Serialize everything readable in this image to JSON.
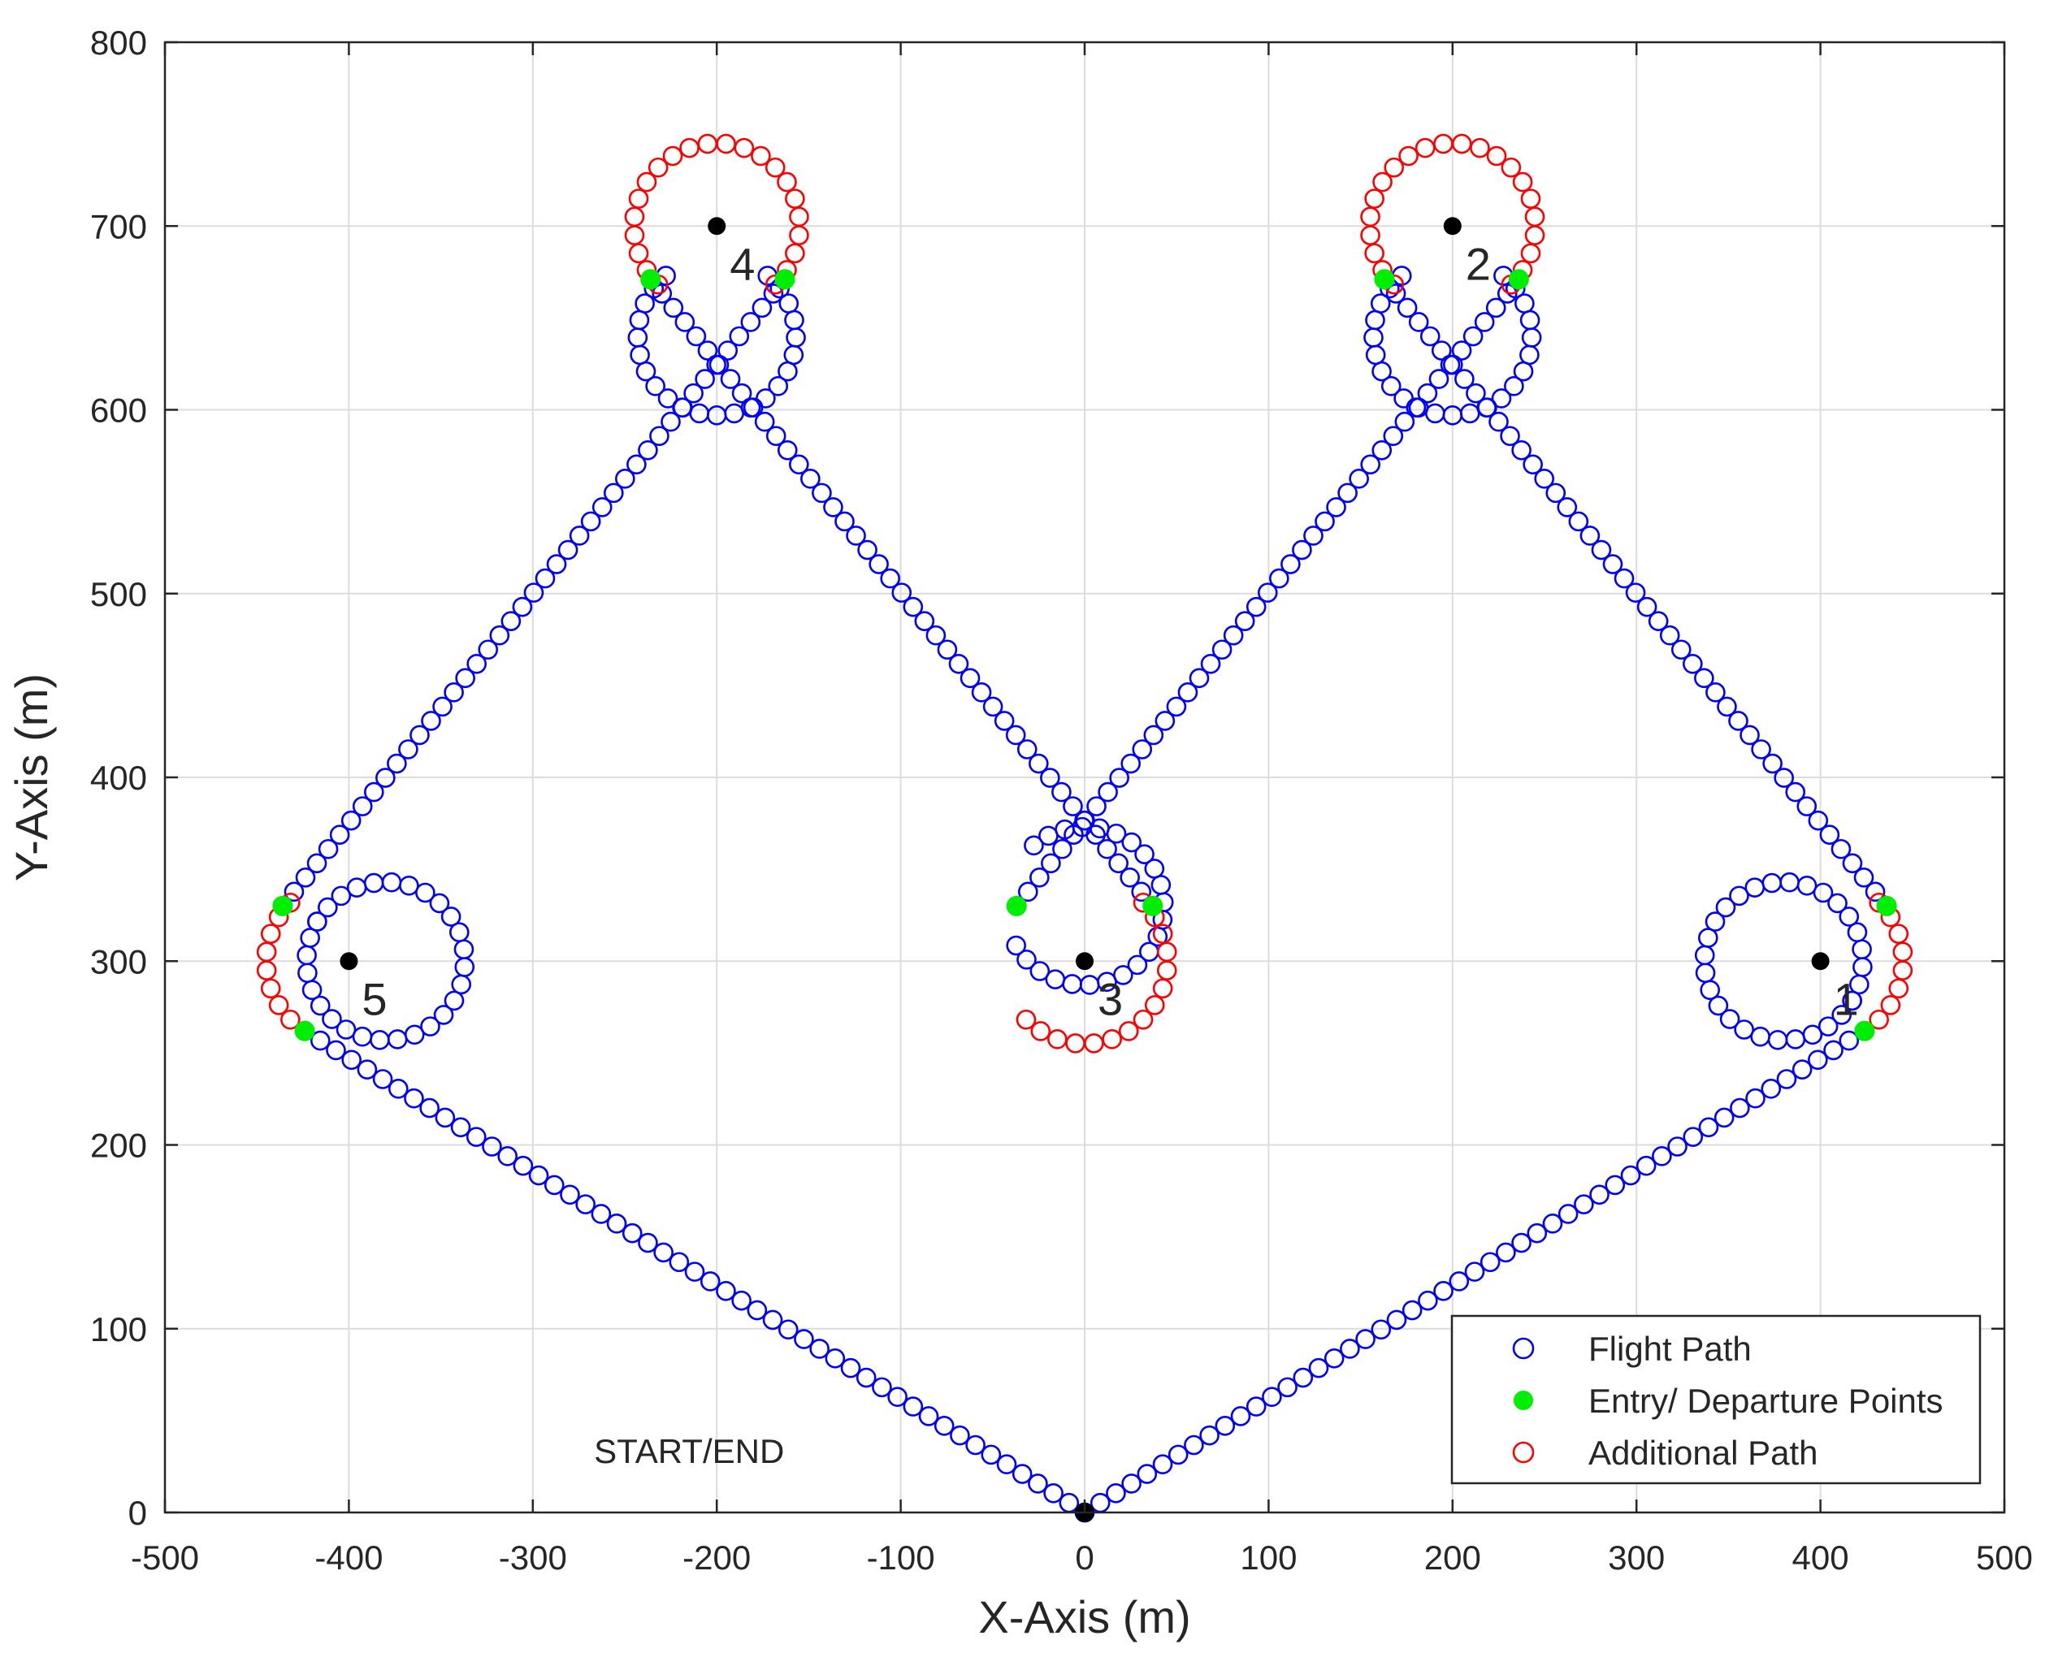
{
  "chart_data": {
    "type": "scatter",
    "xlabel": "X-Axis (m)",
    "ylabel": "Y-Axis (m)",
    "xlim": [
      -500,
      500
    ],
    "ylim": [
      0,
      800
    ],
    "xticks": [
      -500,
      -400,
      -300,
      -200,
      -100,
      0,
      100,
      200,
      300,
      400,
      500
    ],
    "yticks": [
      0,
      100,
      200,
      300,
      400,
      500,
      600,
      700,
      800
    ],
    "grid": true,
    "legend_position": "bottom-right",
    "legend": [
      {
        "name": "Flight Path",
        "marker": "open-circle",
        "color": "#0000ff"
      },
      {
        "name": "Entry/ Departure Points",
        "marker": "filled-circle",
        "color": "#00ee00"
      },
      {
        "name": "Additional Path",
        "marker": "open-circle",
        "color": "#ff0000"
      }
    ],
    "waypoints": [
      {
        "id": "1",
        "x": 400,
        "y": 300
      },
      {
        "id": "2",
        "x": 200,
        "y": 700
      },
      {
        "id": "3",
        "x": 0,
        "y": 300
      },
      {
        "id": "4",
        "x": -200,
        "y": 700
      },
      {
        "id": "5",
        "x": -400,
        "y": 300
      }
    ],
    "start_point": {
      "x": 0,
      "y": 0,
      "label": "START/END"
    },
    "loiter_radius": 43,
    "point_spacing": 10,
    "entry_departure_points": [
      {
        "x": 436,
        "y": 330
      },
      {
        "x": 424,
        "y": 262
      },
      {
        "x": 236,
        "y": 671
      },
      {
        "x": 163,
        "y": 671
      },
      {
        "x": 37,
        "y": 330
      },
      {
        "x": -37,
        "y": 330
      },
      {
        "x": -163,
        "y": 671
      },
      {
        "x": -236,
        "y": 671
      },
      {
        "x": -436,
        "y": 330
      },
      {
        "x": -424,
        "y": 262
      }
    ],
    "flight_path_legs": [
      {
        "from": [
          0,
          0
        ],
        "to": [
          424,
          262
        ]
      },
      {
        "from": [
          436,
          330
        ],
        "to": [
          163,
          671
        ]
      },
      {
        "from": [
          236,
          671
        ],
        "to": [
          -37,
          330
        ]
      },
      {
        "from": [
          37,
          330
        ],
        "to": [
          -236,
          671
        ]
      },
      {
        "from": [
          -163,
          671
        ],
        "to": [
          -436,
          330
        ]
      },
      {
        "from": [
          -424,
          262
        ],
        "to": [
          0,
          0
        ]
      }
    ],
    "flight_path_loops": [
      {
        "center": [
          380,
          300
        ],
        "start_deg": -30,
        "end_deg": 60
      },
      {
        "center": [
          200,
          640
        ],
        "start_deg": 130,
        "end_deg": 50,
        "direction": "ccw-through-bottom"
      },
      {
        "center": [
          0,
          330
        ],
        "start_deg": 130,
        "end_deg": 50,
        "direction": "cw-over-top"
      },
      {
        "center": [
          -200,
          640
        ],
        "start_deg": 130,
        "end_deg": 50,
        "direction": "ccw-through-bottom"
      },
      {
        "center": [
          -380,
          300
        ],
        "start_deg": 150,
        "end_deg": 210
      }
    ],
    "additional_path_arcs": [
      {
        "center": [
          400,
          300
        ],
        "start_deg": -45,
        "end_deg": 45
      },
      {
        "center": [
          200,
          700
        ],
        "start_deg": -45,
        "end_deg": 225
      },
      {
        "center": [
          0,
          300
        ],
        "start_deg": -135,
        "end_deg": 45
      },
      {
        "center": [
          -200,
          700
        ],
        "start_deg": -45,
        "end_deg": 225
      },
      {
        "center": [
          -400,
          300
        ],
        "start_deg": 135,
        "end_deg": 225
      }
    ]
  }
}
